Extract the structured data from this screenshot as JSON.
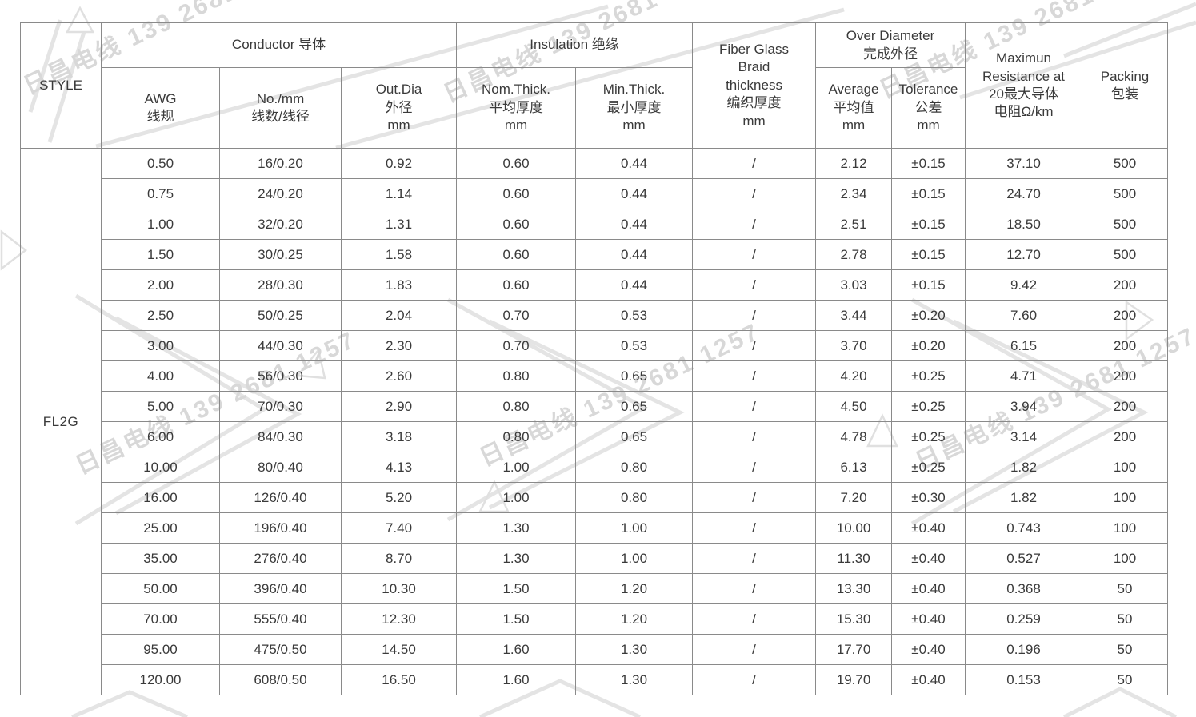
{
  "watermark": {
    "text": "日昌电线 139 2681 1257",
    "text_color": "#d8d8d8",
    "shape_color": "#e4e4e4"
  },
  "table": {
    "style_value": "FL2G",
    "header": {
      "style": "STYLE",
      "conductor_group": "Conductor 导体",
      "insulation_group": "Insulation 绝缘",
      "fiber_glass": "Fiber Glass\nBraid\nthickness\n编织厚度\nmm",
      "over_diameter_group": "Over Diameter\n完成外径",
      "resistance": "Maximun\nResistance at\n20最大导体\n电阻Ω/km",
      "packing": "Packing\n包装",
      "awg": "AWG\n线规",
      "strands": "No./mm\n线数/线径",
      "out_dia": "Out.Dia\n外径\nmm",
      "nom_thick": "Nom.Thick.\n平均厚度\nmm",
      "min_thick": "Min.Thick.\n最小厚度\nmm",
      "average": "Average\n平均值\nmm",
      "tolerance": "Tolerance\n公差\nmm"
    },
    "cell_names": [
      "cell-awg",
      "cell-strands",
      "cell-out-dia",
      "cell-nom-thick",
      "cell-min-thick",
      "cell-braid-thickness",
      "cell-avg-diameter",
      "cell-tolerance",
      "cell-resistance",
      "cell-packing"
    ],
    "rows": [
      [
        "0.50",
        "16/0.20",
        "0.92",
        "0.60",
        "0.44",
        "/",
        "2.12",
        "±0.15",
        "37.10",
        "500"
      ],
      [
        "0.75",
        "24/0.20",
        "1.14",
        "0.60",
        "0.44",
        "/",
        "2.34",
        "±0.15",
        "24.70",
        "500"
      ],
      [
        "1.00",
        "32/0.20",
        "1.31",
        "0.60",
        "0.44",
        "/",
        "2.51",
        "±0.15",
        "18.50",
        "500"
      ],
      [
        "1.50",
        "30/0.25",
        "1.58",
        "0.60",
        "0.44",
        "/",
        "2.78",
        "±0.15",
        "12.70",
        "500"
      ],
      [
        "2.00",
        "28/0.30",
        "1.83",
        "0.60",
        "0.44",
        "/",
        "3.03",
        "±0.15",
        "9.42",
        "200"
      ],
      [
        "2.50",
        "50/0.25",
        "2.04",
        "0.70",
        "0.53",
        "/",
        "3.44",
        "±0.20",
        "7.60",
        "200"
      ],
      [
        "3.00",
        "44/0.30",
        "2.30",
        "0.70",
        "0.53",
        "/",
        "3.70",
        "±0.20",
        "6.15",
        "200"
      ],
      [
        "4.00",
        "56/0.30",
        "2.60",
        "0.80",
        "0.65",
        "/",
        "4.20",
        "±0.25",
        "4.71",
        "200"
      ],
      [
        "5.00",
        "70/0.30",
        "2.90",
        "0.80",
        "0.65",
        "/",
        "4.50",
        "±0.25",
        "3.94",
        "200"
      ],
      [
        "6.00",
        "84/0.30",
        "3.18",
        "0.80",
        "0.65",
        "/",
        "4.78",
        "±0.25",
        "3.14",
        "200"
      ],
      [
        "10.00",
        "80/0.40",
        "4.13",
        "1.00",
        "0.80",
        "/",
        "6.13",
        "±0.25",
        "1.82",
        "100"
      ],
      [
        "16.00",
        "126/0.40",
        "5.20",
        "1.00",
        "0.80",
        "/",
        "7.20",
        "±0.30",
        "1.82",
        "100"
      ],
      [
        "25.00",
        "196/0.40",
        "7.40",
        "1.30",
        "1.00",
        "/",
        "10.00",
        "±0.40",
        "0.743",
        "100"
      ],
      [
        "35.00",
        "276/0.40",
        "8.70",
        "1.30",
        "1.00",
        "/",
        "11.30",
        "±0.40",
        "0.527",
        "100"
      ],
      [
        "50.00",
        "396/0.40",
        "10.30",
        "1.50",
        "1.20",
        "/",
        "13.30",
        "±0.40",
        "0.368",
        "50"
      ],
      [
        "70.00",
        "555/0.40",
        "12.30",
        "1.50",
        "1.20",
        "/",
        "15.30",
        "±0.40",
        "0.259",
        "50"
      ],
      [
        "95.00",
        "475/0.50",
        "14.50",
        "1.60",
        "1.30",
        "/",
        "17.70",
        "±0.40",
        "0.196",
        "50"
      ],
      [
        "120.00",
        "608/0.50",
        "16.50",
        "1.60",
        "1.30",
        "/",
        "19.70",
        "±0.40",
        "0.153",
        "50"
      ]
    ]
  }
}
